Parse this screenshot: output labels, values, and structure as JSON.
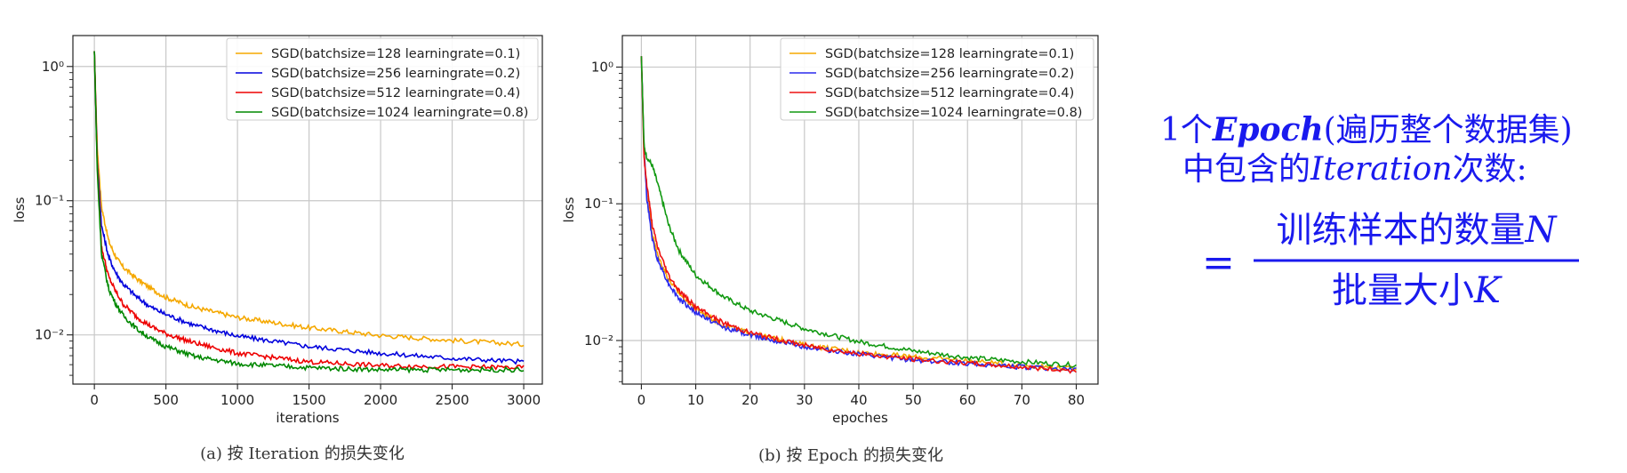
{
  "chart_data": [
    {
      "type": "line",
      "caption": "(a) 按 Iteration 的损失变化",
      "xlabel": "iterations",
      "ylabel": "loss",
      "yscale": "log",
      "xlim": [
        -150,
        3130
      ],
      "ylim": [
        0.0043,
        1.7
      ],
      "xticks": [
        0,
        500,
        1000,
        1500,
        2000,
        2500,
        3000
      ],
      "yticks": [
        {
          "value": 1,
          "label": "10⁰"
        },
        {
          "value": 0.1,
          "label": "10⁻¹"
        },
        {
          "value": 0.01,
          "label": "10⁻²"
        }
      ],
      "grid": true,
      "legend_position": "upper right",
      "series": [
        {
          "name": "SGD(batchsize=128 learningrate=0.1)",
          "color": "#f5a800",
          "x": [
            0,
            20,
            50,
            100,
            150,
            200,
            300,
            400,
            500,
            700,
            1000,
            1500,
            2000,
            2500,
            3000
          ],
          "y": [
            1.3,
            0.25,
            0.09,
            0.05,
            0.038,
            0.032,
            0.026,
            0.022,
            0.019,
            0.016,
            0.0135,
            0.0113,
            0.0099,
            0.0091,
            0.0085
          ]
        },
        {
          "name": "SGD(batchsize=256 learningrate=0.2)",
          "color": "#0000dd",
          "x": [
            0,
            20,
            50,
            100,
            150,
            200,
            300,
            400,
            500,
            700,
            1000,
            1500,
            2000,
            2500,
            3000
          ],
          "y": [
            1.3,
            0.2,
            0.065,
            0.038,
            0.029,
            0.024,
            0.019,
            0.016,
            0.0142,
            0.0118,
            0.0098,
            0.0082,
            0.0073,
            0.0067,
            0.0063
          ]
        },
        {
          "name": "SGD(batchsize=512 learningrate=0.4)",
          "color": "#ee0000",
          "x": [
            0,
            20,
            50,
            100,
            150,
            200,
            300,
            400,
            500,
            700,
            1000,
            1500,
            2000,
            2500,
            3000
          ],
          "y": [
            1.3,
            0.19,
            0.045,
            0.027,
            0.021,
            0.017,
            0.0135,
            0.0115,
            0.0102,
            0.0087,
            0.0073,
            0.0063,
            0.0059,
            0.0058,
            0.0057
          ]
        },
        {
          "name": "SGD(batchsize=1024 learningrate=0.8)",
          "color": "#008800",
          "x": [
            0,
            20,
            50,
            100,
            150,
            200,
            300,
            400,
            500,
            700,
            1000,
            1500,
            2000,
            2500,
            3000
          ],
          "y": [
            1.3,
            0.17,
            0.04,
            0.022,
            0.017,
            0.014,
            0.011,
            0.0093,
            0.0082,
            0.0069,
            0.0061,
            0.0057,
            0.0055,
            0.0055,
            0.0055
          ]
        }
      ]
    },
    {
      "type": "line",
      "caption": "(b) 按 Epoch 的损失变化",
      "xlabel": "epoches",
      "ylabel": "loss",
      "yscale": "log",
      "xlim": [
        -3.5,
        84
      ],
      "ylim": [
        0.0048,
        1.7
      ],
      "xticks": [
        0,
        10,
        20,
        30,
        40,
        50,
        60,
        70,
        80
      ],
      "yticks": [
        {
          "value": 1,
          "label": "10⁰"
        },
        {
          "value": 0.1,
          "label": "10⁻¹"
        },
        {
          "value": 0.01,
          "label": "10⁻²"
        }
      ],
      "grid": true,
      "legend_position": "upper right",
      "series": [
        {
          "name": "SGD(batchsize=128 learningrate=0.1)",
          "color": "#f5a800",
          "x": [
            0,
            0.5,
            1,
            2,
            3,
            5,
            7,
            10,
            15,
            20,
            30,
            40,
            50,
            60,
            70,
            80
          ],
          "y": [
            1.2,
            0.25,
            0.12,
            0.06,
            0.042,
            0.028,
            0.022,
            0.017,
            0.013,
            0.0113,
            0.0093,
            0.0082,
            0.0076,
            0.0071,
            0.0066,
            0.0062
          ]
        },
        {
          "name": "SGD(batchsize=256 learningrate=0.2)",
          "color": "#2a2aee",
          "x": [
            0,
            0.5,
            1,
            2,
            3,
            5,
            7,
            10,
            15,
            20,
            30,
            40,
            50,
            60,
            70,
            80
          ],
          "y": [
            1.2,
            0.24,
            0.11,
            0.055,
            0.039,
            0.026,
            0.02,
            0.016,
            0.0125,
            0.011,
            0.009,
            0.0079,
            0.0072,
            0.0068,
            0.0064,
            0.0061
          ]
        },
        {
          "name": "SGD(batchsize=512 learningrate=0.4)",
          "color": "#ee1111",
          "x": [
            0,
            0.5,
            1,
            2,
            3,
            5,
            7,
            10,
            15,
            20,
            30,
            40,
            50,
            60,
            70,
            80
          ],
          "y": [
            1.2,
            0.21,
            0.14,
            0.07,
            0.048,
            0.03,
            0.023,
            0.0175,
            0.0135,
            0.0114,
            0.0092,
            0.008,
            0.0073,
            0.0068,
            0.0064,
            0.006
          ]
        },
        {
          "name": "SGD(batchsize=1024 learningrate=0.8)",
          "color": "#119911",
          "x": [
            0,
            0.5,
            1,
            2,
            3,
            4,
            5,
            7,
            10,
            15,
            20,
            30,
            40,
            50,
            60,
            70,
            80
          ],
          "y": [
            1.2,
            0.26,
            0.22,
            0.19,
            0.14,
            0.1,
            0.07,
            0.045,
            0.03,
            0.021,
            0.0165,
            0.0122,
            0.0098,
            0.0084,
            0.0075,
            0.007,
            0.0066
          ]
        }
      ]
    }
  ],
  "formula": {
    "line1_num": "1",
    "line1_ge": "个",
    "line1_epoch": "Epoch",
    "line1_paren": "(遍历整个数据集)",
    "line2_pre": "中包含的",
    "line2_iter": "Iteration",
    "line2_post": "次数:",
    "equals": "=",
    "numerator_text": "训练样本的数量",
    "numerator_var": "N",
    "denominator_text": "批量大小",
    "denominator_var": "K",
    "color": "#1a1aee"
  }
}
